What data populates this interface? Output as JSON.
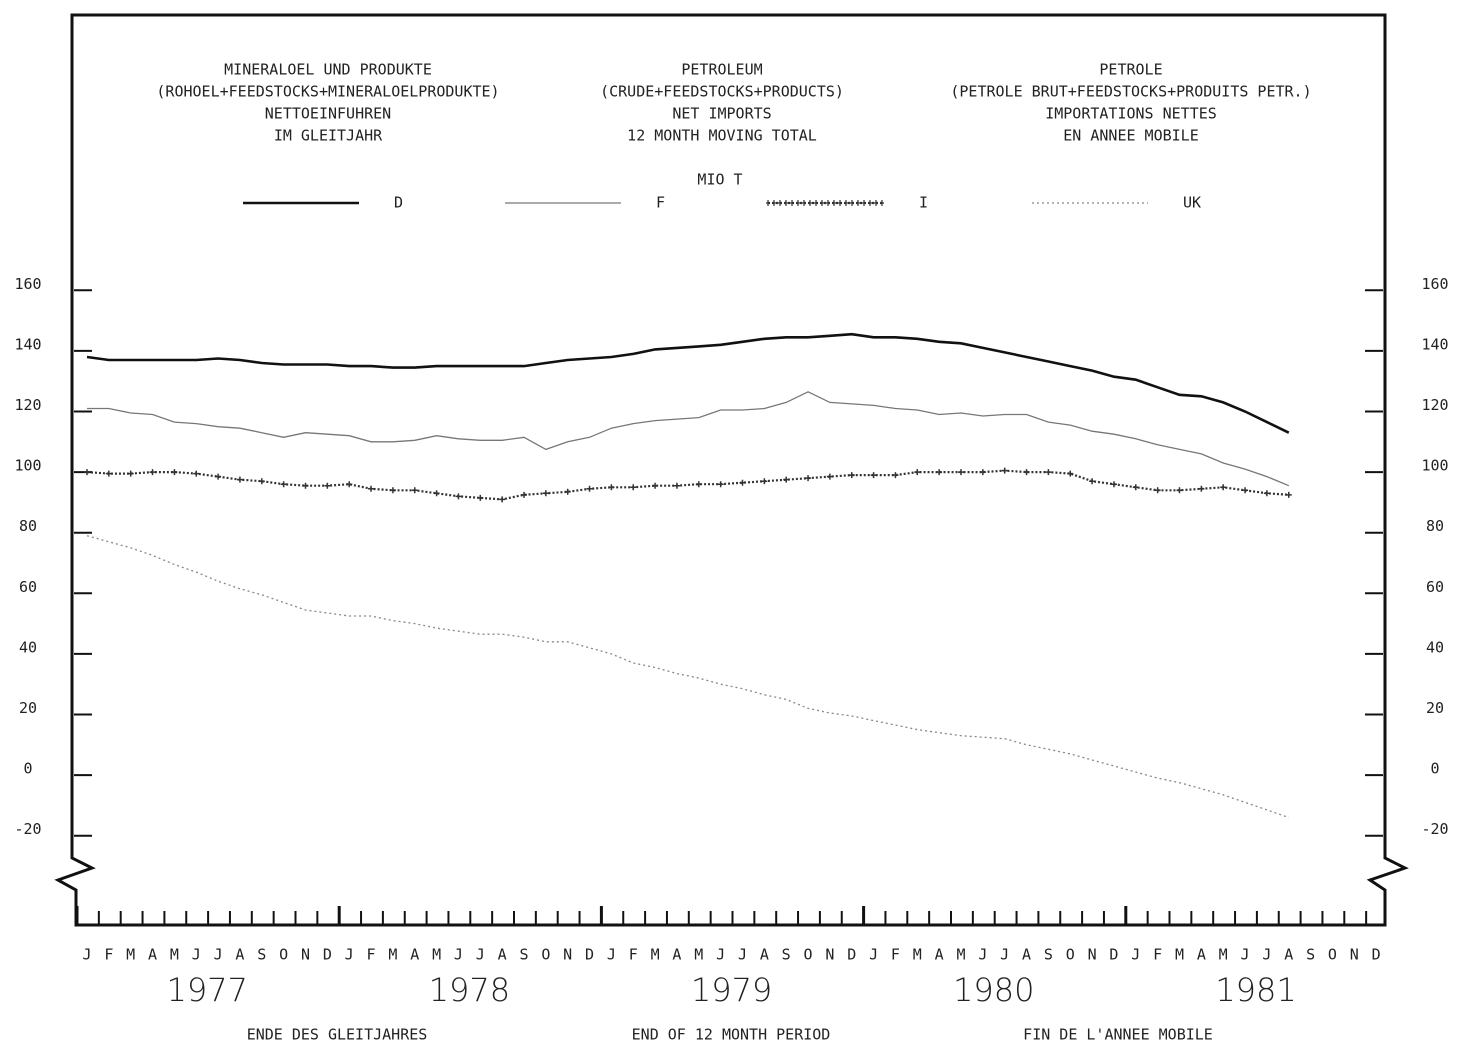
{
  "chart_data": {
    "type": "line",
    "title_blocks": [
      [
        "MINERALOEL UND PRODUKTE",
        "(ROHOEL+FEEDSTOCKS+MINERALOELPRODUKTE)",
        "NETTOEINFUHREN",
        "IM GLEITJAHR"
      ],
      [
        "PETROLEUM",
        "(CRUDE+FEEDSTOCKS+PRODUCTS)",
        "NET IMPORTS",
        "12 MONTH MOVING TOTAL"
      ],
      [
        "PETROLE",
        "(PETROLE BRUT+FEEDSTOCKS+PRODUITS PETR.)",
        "IMPORTATIONS NETTES",
        "EN ANNEE MOBILE"
      ]
    ],
    "unit": "MIO T",
    "x_labels": [
      "ENDE DES GLEITJAHRES",
      "END OF 12 MONTH PERIOD",
      "FIN DE L'ANNEE MOBILE"
    ],
    "year_labels": [
      "1977",
      "1978",
      "1979",
      "1980",
      "1981"
    ],
    "categories": [
      "J",
      "F",
      "M",
      "A",
      "M",
      "J",
      "J",
      "A",
      "S",
      "O",
      "N",
      "D",
      "J",
      "F",
      "M",
      "A",
      "M",
      "J",
      "J",
      "A",
      "S",
      "O",
      "N",
      "D",
      "J",
      "F",
      "M",
      "A",
      "M",
      "J",
      "J",
      "A",
      "S",
      "O",
      "N",
      "D",
      "J",
      "F",
      "M",
      "A",
      "M",
      "J",
      "J",
      "A",
      "S",
      "O",
      "N",
      "D",
      "J",
      "F",
      "M",
      "A",
      "M",
      "J",
      "J",
      "A",
      "S",
      "O",
      "N",
      "D"
    ],
    "series": [
      {
        "name": "D",
        "color": "#111111",
        "style": "thick",
        "values": [
          138,
          137,
          137,
          137,
          137,
          137,
          137.5,
          137,
          136,
          135.5,
          135.5,
          135.5,
          135,
          135,
          134.5,
          134.5,
          135,
          135,
          135,
          135,
          135,
          136,
          137,
          137.5,
          138,
          139,
          140.5,
          141,
          141.5,
          142,
          143,
          144,
          144.5,
          144.5,
          145,
          145.5,
          144.5,
          144.5,
          144,
          143,
          142.5,
          141,
          139.5,
          138,
          136.5,
          135,
          133.5,
          131.5,
          130.5,
          128,
          125.5,
          125,
          123,
          120,
          116.5,
          113,
          null,
          null,
          null,
          null
        ]
      },
      {
        "name": "F",
        "color": "#777777",
        "style": "thin",
        "values": [
          121,
          121,
          119.5,
          119,
          116.5,
          116,
          115,
          114.5,
          113,
          111.5,
          113,
          112.5,
          112,
          110,
          110,
          110.5,
          112,
          111,
          110.5,
          110.5,
          111.5,
          107.5,
          110,
          111.5,
          114.5,
          116,
          117,
          117.5,
          118,
          120.5,
          120.5,
          121,
          123,
          126.5,
          123,
          122.5,
          122,
          121,
          120.5,
          119,
          119.5,
          118.5,
          119,
          119,
          116.5,
          115.5,
          113.5,
          112.5,
          111,
          109,
          107.5,
          106,
          103,
          101,
          98.5,
          95.5,
          null,
          null,
          null,
          null
        ]
      },
      {
        "name": "I",
        "color": "#333333",
        "style": "cross",
        "values": [
          100,
          99.5,
          99.5,
          100,
          100,
          99.5,
          98.5,
          97.5,
          97,
          96,
          95.5,
          95.5,
          96,
          94.5,
          94,
          94,
          93,
          92,
          91.5,
          91,
          92.5,
          93,
          93.5,
          94.5,
          95,
          95,
          95.5,
          95.5,
          96,
          96,
          96.5,
          97,
          97.5,
          98,
          98.5,
          99,
          99,
          99,
          100,
          100,
          100,
          100,
          100.5,
          100,
          100,
          99.5,
          97,
          96,
          95,
          94,
          94,
          94.5,
          95,
          94,
          93,
          92.5,
          null,
          null,
          null,
          null
        ]
      },
      {
        "name": "UK",
        "color": "#888888",
        "style": "dotted",
        "values": [
          79,
          77,
          75,
          72.5,
          69.5,
          67,
          64,
          61.5,
          59.5,
          57,
          54.5,
          53.5,
          52.5,
          52.5,
          51,
          50,
          48.5,
          47.5,
          46.5,
          46.5,
          45.5,
          44,
          44,
          42,
          40,
          37,
          35.5,
          33.5,
          32,
          30,
          28.5,
          26.5,
          25,
          22,
          20.5,
          19.5,
          18,
          16.5,
          15,
          14,
          13,
          12.5,
          12,
          10,
          8.5,
          7,
          5,
          3,
          1,
          -1,
          -2.5,
          -4.5,
          -6.5,
          -9,
          -11.5,
          -14,
          null,
          null,
          null,
          null
        ]
      }
    ],
    "ylim": [
      -30,
      170
    ],
    "yticks": [
      -20,
      0,
      20,
      40,
      60,
      80,
      100,
      120,
      140,
      160
    ]
  }
}
